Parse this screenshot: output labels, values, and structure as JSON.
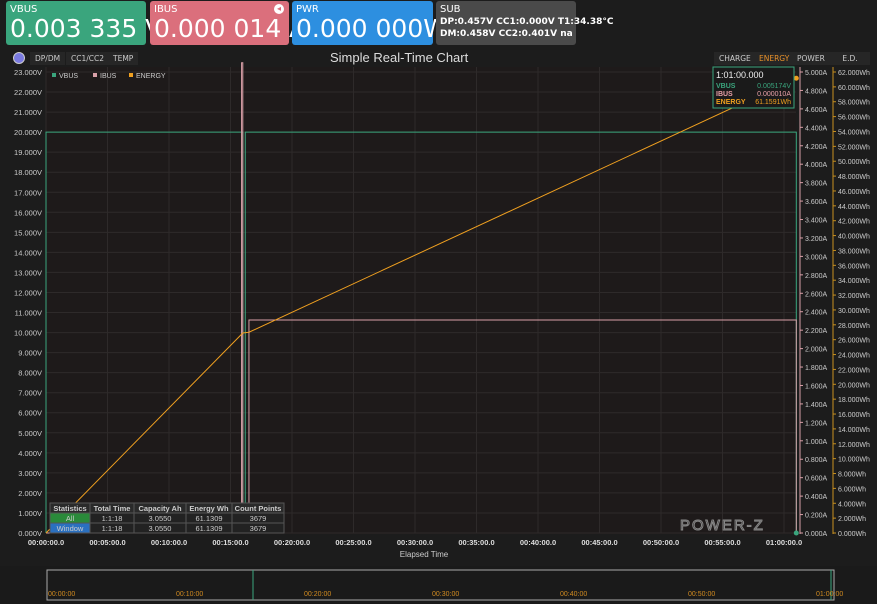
{
  "cards": {
    "vbus": {
      "label": "VBUS",
      "value": "0.003 335 V",
      "color": "#3aa57d"
    },
    "ibus": {
      "label": "IBUS",
      "value": "0.000 014 A",
      "color": "#db6f7c"
    },
    "pwr": {
      "label": "PWR",
      "value": "0.000 000W",
      "color": "#2d8fe0"
    },
    "sub": {
      "label": "SUB",
      "line1": "DP:0.457V  CC1:0.000V  T1:34.38°C",
      "line2": "DM:0.458V  CC2:0.401V  na"
    }
  },
  "left_tabs": [
    "DP/DM",
    "CC1/CC2",
    "TEMP"
  ],
  "right_tabs": [
    "CHARGE",
    "ENERGY",
    "POWER",
    "E.D."
  ],
  "active_right_tab": "ENERGY",
  "chart_title": "Simple Real-Time Chart",
  "watermark": "POWER-Z",
  "tooltip": {
    "time": "1:01:00.000",
    "rows": [
      {
        "k": "VBUS",
        "v": "0.005174V"
      },
      {
        "k": "IBUS",
        "v": "0.000010A"
      },
      {
        "k": "ENERGY",
        "v": "61.1591Wh"
      }
    ]
  },
  "stats": {
    "headers": [
      "Statistics",
      "Total Time",
      "Capacity Ah",
      "Energy Wh",
      "Count Points"
    ],
    "rows": [
      [
        "All",
        "1:1:18",
        "3.0550",
        "61.1309",
        "3679"
      ],
      [
        "Window",
        "1:1:18",
        "3.0550",
        "61.1309",
        "3679"
      ]
    ]
  },
  "navigator_labels": [
    "00:00:00",
    "00:10:00",
    "00:20:00",
    "00:30:00",
    "00:40:00",
    "00:50:00",
    "01:00:00"
  ],
  "chart_data": {
    "type": "line",
    "title": "Simple Real-Time Chart",
    "xlabel": "Elapsed Time",
    "x_ticks": [
      "00:00:00.0",
      "00:05:00.0",
      "00:10:00.0",
      "00:15:00.0",
      "00:20:00.0",
      "00:25:00.0",
      "00:30:00.0",
      "00:35:00.0",
      "00:40:00.0",
      "00:45:00.0",
      "00:50:00.0",
      "00:55:00.0",
      "01:00:00.0"
    ],
    "xlim_minutes": [
      0,
      61
    ],
    "y_left": {
      "unit": "V",
      "lim": [
        0,
        23
      ],
      "step": 1
    },
    "y_right1": {
      "unit": "A",
      "lim": [
        0,
        5
      ],
      "step": 0.2
    },
    "y_right2": {
      "unit": "Wh",
      "lim": [
        0,
        62
      ],
      "step": 2
    },
    "legend": "top-left",
    "grid": true,
    "series": [
      {
        "name": "VBUS",
        "color": "#3aa57d",
        "axis": "V",
        "points": [
          [
            0,
            0
          ],
          [
            0,
            20
          ],
          [
            16,
            20
          ],
          [
            16,
            0
          ],
          [
            16.2,
            0
          ],
          [
            16.2,
            20
          ],
          [
            61,
            20
          ],
          [
            61,
            0
          ]
        ]
      },
      {
        "name": "IBUS",
        "color": "#d9a0a8",
        "axis": "A",
        "points": [
          [
            0,
            0
          ],
          [
            15.9,
            0
          ],
          [
            15.9,
            5.1
          ],
          [
            16,
            5.1
          ],
          [
            16,
            0
          ],
          [
            16.5,
            0
          ],
          [
            16.5,
            2.31
          ],
          [
            61,
            2.31
          ],
          [
            61,
            0
          ]
        ]
      },
      {
        "name": "ENERGY",
        "color": "#f0a020",
        "axis": "Wh",
        "points": [
          [
            0,
            0
          ],
          [
            16,
            26.9
          ],
          [
            16.5,
            27.0
          ],
          [
            61,
            61.16
          ]
        ]
      }
    ]
  }
}
